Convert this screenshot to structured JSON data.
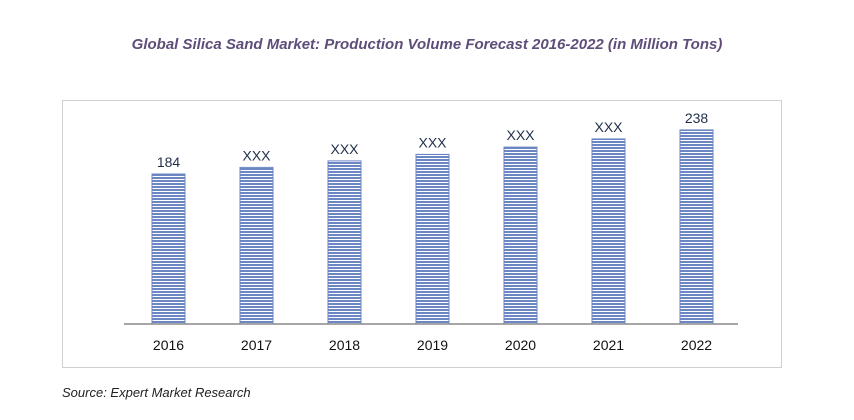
{
  "title": "Global Silica Sand Market: Production Volume Forecast 2016-2022 (in Million Tons)",
  "source": "Source: Expert Market Research",
  "chart_data": {
    "type": "bar",
    "title": "Global Silica Sand Market: Production Volume Forecast 2016-2022 (in Million Tons)",
    "xlabel": "",
    "ylabel": "",
    "categories": [
      "2016",
      "2017",
      "2018",
      "2019",
      "2020",
      "2021",
      "2022"
    ],
    "values": [
      184,
      192,
      200,
      208,
      217,
      227,
      238
    ],
    "data_labels": [
      "184",
      "XXX",
      "XXX",
      "XXX",
      "XXX",
      "XXX",
      "238"
    ],
    "ylim": [
      0,
      260
    ],
    "grid": false,
    "legend": "none",
    "bar_color": "#6b86c2",
    "bar_stripe_color": "#ffffff",
    "axis_color": "#888888",
    "label_color": "#1f2f4a"
  }
}
